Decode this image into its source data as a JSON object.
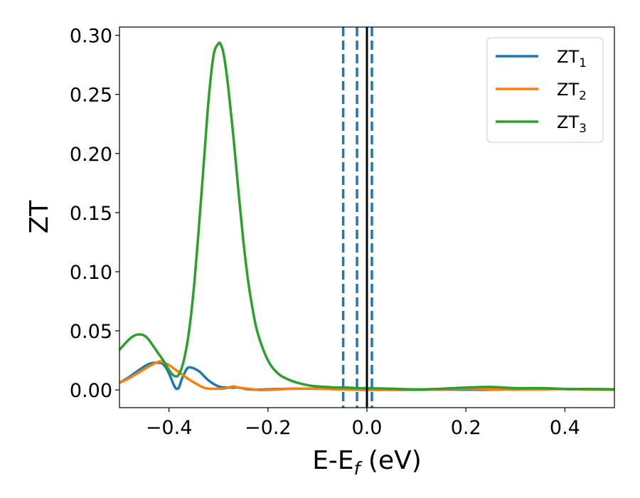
{
  "chart_data": {
    "type": "line",
    "xlabel": "E-E",
    "xlabel_sub": "f",
    "xlabel_unit": " (eV)",
    "ylabel": "ZT",
    "xlim": [
      -0.5,
      0.5
    ],
    "ylim": [
      -0.015,
      0.307
    ],
    "xticks": [
      -0.4,
      -0.2,
      0.0,
      0.2,
      0.4
    ],
    "xtick_labels": [
      "−0.4",
      "−0.2",
      "0.0",
      "0.2",
      "0.4"
    ],
    "yticks": [
      0.0,
      0.05,
      0.1,
      0.15,
      0.2,
      0.25,
      0.3
    ],
    "ytick_labels": [
      "0.00",
      "0.05",
      "0.10",
      "0.15",
      "0.20",
      "0.25",
      "0.30"
    ],
    "grid": false,
    "legend_position": "top-right",
    "series": [
      {
        "name": "ZT",
        "name_sub": "1",
        "color": "#1f77b4",
        "x": [
          -0.5,
          -0.48,
          -0.46,
          -0.44,
          -0.42,
          -0.41,
          -0.4,
          -0.39,
          -0.385,
          -0.38,
          -0.375,
          -0.37,
          -0.36,
          -0.34,
          -0.32,
          -0.3,
          -0.28,
          -0.27,
          -0.26,
          -0.24,
          -0.22,
          -0.2,
          -0.15,
          -0.1,
          -0.05,
          0.0,
          0.05,
          0.1,
          0.15,
          0.2,
          0.25,
          0.3,
          0.35,
          0.4,
          0.45,
          0.5
        ],
        "y": [
          0.006,
          0.011,
          0.017,
          0.022,
          0.023,
          0.021,
          0.014,
          0.004,
          0.001,
          0.002,
          0.008,
          0.013,
          0.019,
          0.016,
          0.008,
          0.003,
          0.002,
          0.002,
          0.002,
          0.0005,
          0.0003,
          0.0005,
          0.001,
          0.001,
          0.0005,
          0.0003,
          0.0002,
          0.0003,
          0.0003,
          0.0002,
          0.0002,
          0.0008,
          0.0015,
          0.0007,
          0.0003,
          0.0001
        ]
      },
      {
        "name": "ZT",
        "name_sub": "2",
        "color": "#ff7f0e",
        "x": [
          -0.5,
          -0.48,
          -0.46,
          -0.44,
          -0.42,
          -0.41,
          -0.4,
          -0.38,
          -0.36,
          -0.34,
          -0.33,
          -0.32,
          -0.3,
          -0.29,
          -0.28,
          -0.27,
          -0.26,
          -0.24,
          -0.22,
          -0.2,
          -0.15,
          -0.1,
          -0.05,
          0.0,
          0.05,
          0.1,
          0.15,
          0.2,
          0.25,
          0.3,
          0.35,
          0.4,
          0.45,
          0.5
        ],
        "y": [
          0.006,
          0.01,
          0.015,
          0.02,
          0.024,
          0.023,
          0.021,
          0.015,
          0.009,
          0.004,
          0.002,
          0.001,
          0.001,
          0.001,
          0.002,
          0.003,
          0.002,
          0.001,
          0.0,
          0.0,
          0.001,
          0.001,
          0.0005,
          0.0,
          0.0,
          0.0,
          0.0005,
          0.001,
          0.0005,
          0.0003,
          0.0005,
          0.0007,
          0.0003,
          0.0001
        ]
      },
      {
        "name": "ZT",
        "name_sub": "3",
        "color": "#2ca02c",
        "x": [
          -0.5,
          -0.48,
          -0.47,
          -0.46,
          -0.45,
          -0.44,
          -0.42,
          -0.41,
          -0.4,
          -0.39,
          -0.38,
          -0.37,
          -0.36,
          -0.35,
          -0.34,
          -0.33,
          -0.32,
          -0.31,
          -0.3,
          -0.295,
          -0.29,
          -0.285,
          -0.28,
          -0.27,
          -0.26,
          -0.25,
          -0.24,
          -0.23,
          -0.22,
          -0.2,
          -0.18,
          -0.16,
          -0.14,
          -0.12,
          -0.1,
          -0.08,
          -0.06,
          -0.04,
          -0.02,
          0.0,
          0.05,
          0.1,
          0.15,
          0.2,
          0.25,
          0.3,
          0.35,
          0.4,
          0.45,
          0.5
        ],
        "y": [
          0.034,
          0.043,
          0.046,
          0.047,
          0.046,
          0.042,
          0.03,
          0.024,
          0.017,
          0.012,
          0.013,
          0.025,
          0.048,
          0.085,
          0.135,
          0.19,
          0.245,
          0.283,
          0.293,
          0.292,
          0.285,
          0.272,
          0.255,
          0.215,
          0.17,
          0.127,
          0.092,
          0.066,
          0.047,
          0.025,
          0.014,
          0.009,
          0.006,
          0.004,
          0.003,
          0.0025,
          0.002,
          0.002,
          0.0015,
          0.0015,
          0.001,
          0.0005,
          0.001,
          0.002,
          0.0025,
          0.0015,
          0.0015,
          0.0008,
          0.0008,
          0.0006
        ]
      }
    ],
    "vlines": [
      {
        "x": -0.048,
        "style": "dashed",
        "color": "#1f77b4"
      },
      {
        "x": -0.02,
        "style": "dashed",
        "color": "#1f77b4"
      },
      {
        "x": 0.01,
        "style": "dashed",
        "color": "#1f77b4"
      },
      {
        "x": 0.0,
        "style": "solid",
        "color": "#000000"
      }
    ]
  }
}
